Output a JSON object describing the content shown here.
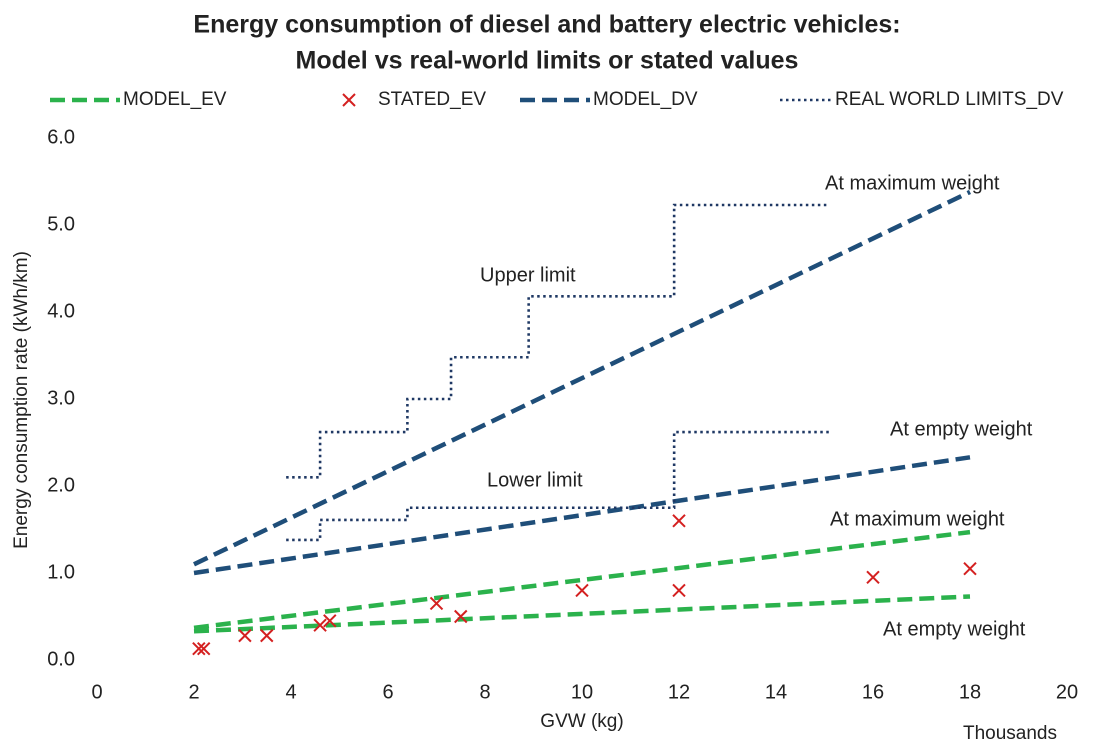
{
  "chart_data": {
    "type": "line",
    "title": [
      "Energy consumption of diesel and battery electric vehicles:",
      "Model vs real-world limits or stated values"
    ],
    "x_label": "GVW (kg)",
    "x_unit_label": "Thousands",
    "y_label": "Energy consumption rate (kWh/km)",
    "xlim": [
      0,
      20
    ],
    "xticks": [
      0,
      2,
      4,
      6,
      8,
      10,
      12,
      14,
      16,
      18,
      20
    ],
    "ylim": [
      0,
      6
    ],
    "yticks": [
      {
        "value": 0,
        "label": "0.0"
      },
      {
        "value": 1,
        "label": "1.0"
      },
      {
        "value": 2,
        "label": "2.0"
      },
      {
        "value": 3,
        "label": "3.0"
      },
      {
        "value": 4,
        "label": "4.0"
      },
      {
        "value": 5,
        "label": "5.0"
      },
      {
        "value": 6,
        "label": "6.0"
      }
    ],
    "grid": false,
    "legend": "top",
    "series": [
      {
        "name": "MODEL_EV",
        "type": "line",
        "style": "dashed",
        "color": "#2bb24c",
        "x": [
          2,
          18,
          null,
          2,
          18
        ],
        "values": [
          0.37,
          1.47,
          null,
          0.33,
          0.73
        ]
      },
      {
        "name": "STATED_EV",
        "type": "scatter",
        "color": "#d42020",
        "x": [
          2.1,
          2.2,
          3.05,
          3.5,
          4.6,
          4.8,
          7,
          7.5,
          10,
          12,
          12,
          16,
          18
        ],
        "values": [
          0.13,
          0.13,
          0.28,
          0.28,
          0.4,
          0.45,
          0.65,
          0.5,
          0.8,
          1.6,
          0.8,
          0.95,
          1.05
        ]
      },
      {
        "name": "MODEL_DV",
        "type": "line",
        "style": "dashed",
        "color": "#1f4e79",
        "x": [
          2,
          18,
          null,
          2,
          18
        ],
        "values": [
          1.1,
          5.38,
          null,
          1.0,
          2.33
        ]
      },
      {
        "name": "REAL WORLD LIMITS_DV",
        "type": "line",
        "style": "dotted",
        "color": "#1f3864",
        "x": [
          3.9,
          4.6,
          4.6,
          6.4,
          6.4,
          7.3,
          7.3,
          8.9,
          8.9,
          11.9,
          11.9,
          15.1,
          null,
          3.9,
          4.6,
          4.6,
          6.4,
          6.4,
          11.9,
          11.9,
          15.1
        ],
        "values": [
          2.1,
          2.1,
          2.62,
          2.62,
          3.0,
          3.0,
          3.48,
          3.48,
          4.18,
          4.18,
          5.23,
          5.23,
          null,
          1.38,
          1.38,
          1.61,
          1.61,
          1.75,
          1.75,
          2.62,
          2.62
        ]
      }
    ],
    "annotations": [
      "At maximum weight",
      "Upper limit",
      "At empty weight",
      "Lower limit",
      "At maximum weight",
      "At empty weight"
    ]
  }
}
